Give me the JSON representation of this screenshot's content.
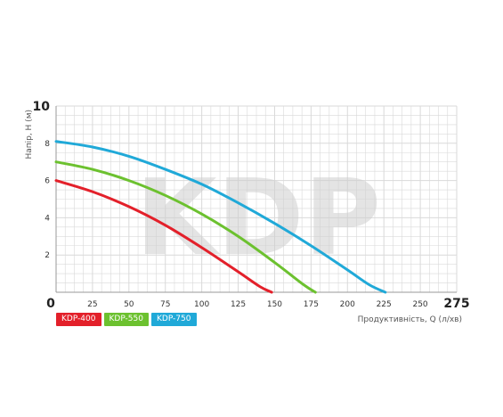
{
  "watermark": "KDP",
  "chart_data": {
    "type": "line",
    "xlabel": "Продуктивність, Q (л/хв)",
    "ylabel": "Напір, Н (м)",
    "xlim": [
      0,
      275
    ],
    "ylim": [
      0,
      10
    ],
    "x_ticks": [
      "0",
      "25",
      "50",
      "75",
      "100",
      "125",
      "150",
      "175",
      "200",
      "225",
      "250",
      "275"
    ],
    "y_ticks": [
      "2",
      "4",
      "6",
      "8",
      "10"
    ],
    "grid": true,
    "legend_position": "bottom-left",
    "series": [
      {
        "name": "KDP-400",
        "color": "#e3202a",
        "x": [
          0,
          25,
          50,
          75,
          100,
          125,
          140,
          148
        ],
        "y": [
          6.0,
          5.4,
          4.6,
          3.6,
          2.4,
          1.1,
          0.3,
          0
        ]
      },
      {
        "name": "KDP-550",
        "color": "#6cc12f",
        "x": [
          0,
          25,
          50,
          75,
          100,
          125,
          150,
          170,
          178
        ],
        "y": [
          7.0,
          6.6,
          6.0,
          5.2,
          4.2,
          3.0,
          1.6,
          0.4,
          0
        ]
      },
      {
        "name": "KDP-750",
        "color": "#20a9d8",
        "x": [
          0,
          25,
          50,
          75,
          100,
          125,
          150,
          175,
          200,
          215,
          226
        ],
        "y": [
          8.1,
          7.8,
          7.3,
          6.6,
          5.8,
          4.8,
          3.7,
          2.5,
          1.2,
          0.4,
          0
        ]
      }
    ]
  }
}
